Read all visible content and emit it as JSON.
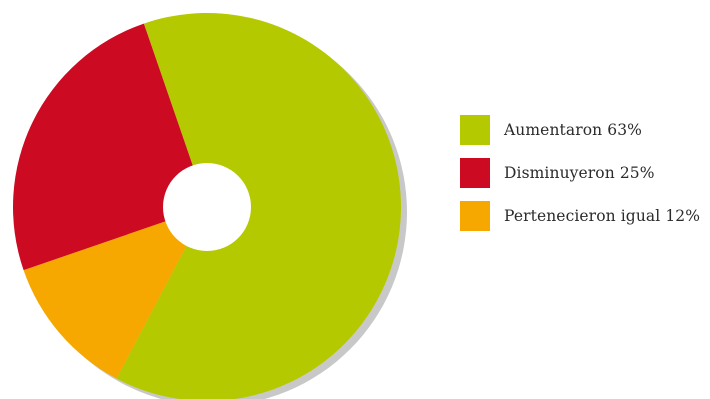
{
  "chart_data": {
    "type": "pie",
    "title": "",
    "donut": true,
    "start_angle_deg": 109,
    "direction": "clockwise",
    "slices": [
      {
        "label": "Aumentaron 63%",
        "value": 63,
        "color": "#b5c900"
      },
      {
        "label": "Pertenecieron igual 12%",
        "value": 12,
        "color": "#f7a800"
      },
      {
        "label": "Disminuyeron 25%",
        "value": 25,
        "color": "#cc0a22"
      }
    ],
    "legend_order": [
      0,
      2,
      1
    ],
    "legend_position": "right",
    "shadow_color": "#c8c8c8"
  }
}
